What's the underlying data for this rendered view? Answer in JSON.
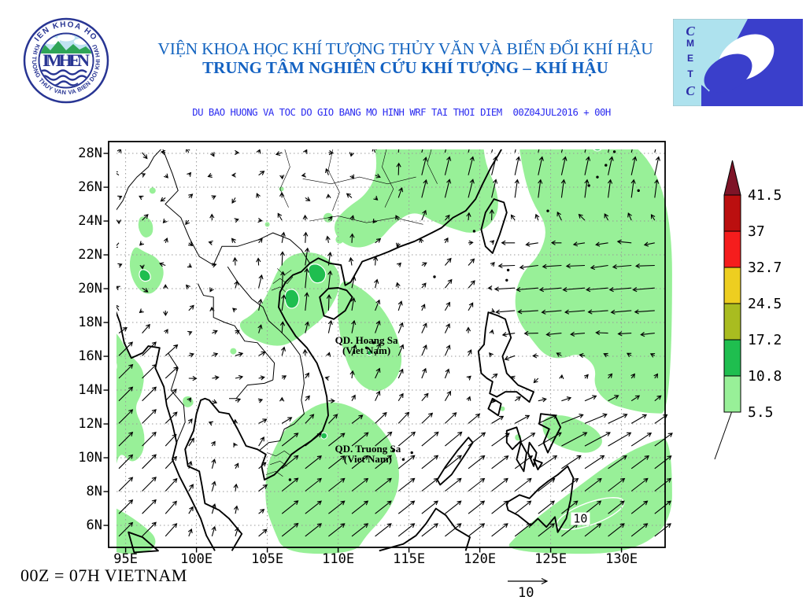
{
  "header": {
    "org_line1": "VIỆN KHOA HỌC KHÍ TƯỢNG THỦY VĂN VÀ BIẾN ĐỔI KHÍ HẬU",
    "org_line2": "TRUNG TÂM NGHIÊN CỨU KHÍ TƯỢNG – KHÍ HẬU"
  },
  "logos": {
    "imhen": {
      "ring_top": "VIEN KHOA HOC",
      "ring_bottom": "KHI TUONG THUY VAN VA BIEN DOI KHI HAU",
      "acronym": "IMHEN"
    },
    "cmetc": {
      "letters": [
        "C",
        "M",
        "E",
        "T",
        "C"
      ]
    }
  },
  "map_caption": "DU BAO HUONG VA TOC DO GIO BANG MO HINH WRF TAI THOI DIEM  00Z04JUL2016 + 00H",
  "map": {
    "lat_ticks": [
      {
        "label": "28N",
        "lat": 28
      },
      {
        "label": "26N",
        "lat": 26
      },
      {
        "label": "24N",
        "lat": 24
      },
      {
        "label": "22N",
        "lat": 22
      },
      {
        "label": "20N",
        "lat": 20
      },
      {
        "label": "18N",
        "lat": 18
      },
      {
        "label": "16N",
        "lat": 16
      },
      {
        "label": "14N",
        "lat": 14
      },
      {
        "label": "12N",
        "lat": 12
      },
      {
        "label": "10N",
        "lat": 10
      },
      {
        "label": "8N",
        "lat": 8
      },
      {
        "label": "6N",
        "lat": 6
      }
    ],
    "lon_ticks": [
      {
        "label": "95E",
        "lon": 95
      },
      {
        "label": "100E",
        "lon": 100
      },
      {
        "label": "105E",
        "lon": 105
      },
      {
        "label": "110E",
        "lon": 110
      },
      {
        "label": "115E",
        "lon": 115
      },
      {
        "label": "120E",
        "lon": 120
      },
      {
        "label": "125E",
        "lon": 125
      },
      {
        "label": "130E",
        "lon": 130
      }
    ],
    "island_labels": [
      {
        "name": "hoang-sa",
        "line1": "QD. Hoang Sa",
        "line2": "(Viet Nam)",
        "lon": 112.0,
        "lat": 16.6
      },
      {
        "name": "truong-sa",
        "line1": "QD. Truong Sa",
        "line2": "(Viet Nam)",
        "lon": 112.1,
        "lat": 10.2
      }
    ],
    "contour_label": "10"
  },
  "colorbar": {
    "levels_top_to_bottom": [
      "41.5",
      "37",
      "32.7",
      "24.5",
      "17.2",
      "10.8",
      "5.5"
    ],
    "segment_colors_bottom_to_top": [
      "#98F098",
      "#1FBE4F",
      "#A9BC20",
      "#EDCE20",
      "#F51D1D",
      "#BB0F0F"
    ],
    "spike_color": "#7E1427"
  },
  "footer": {
    "time_note": "00Z = 07H VIETNAM",
    "reference_arrow_label": "10"
  },
  "colors": {
    "title_blue": "#1565C0",
    "caption_blue": "#2B2BF0",
    "shade_light": "#98F098",
    "shade_medium": "#1FBE4F",
    "navy": "#283593",
    "cmetc_light": "#AEE2EE",
    "cmetc_dark": "#3A3FCB"
  }
}
